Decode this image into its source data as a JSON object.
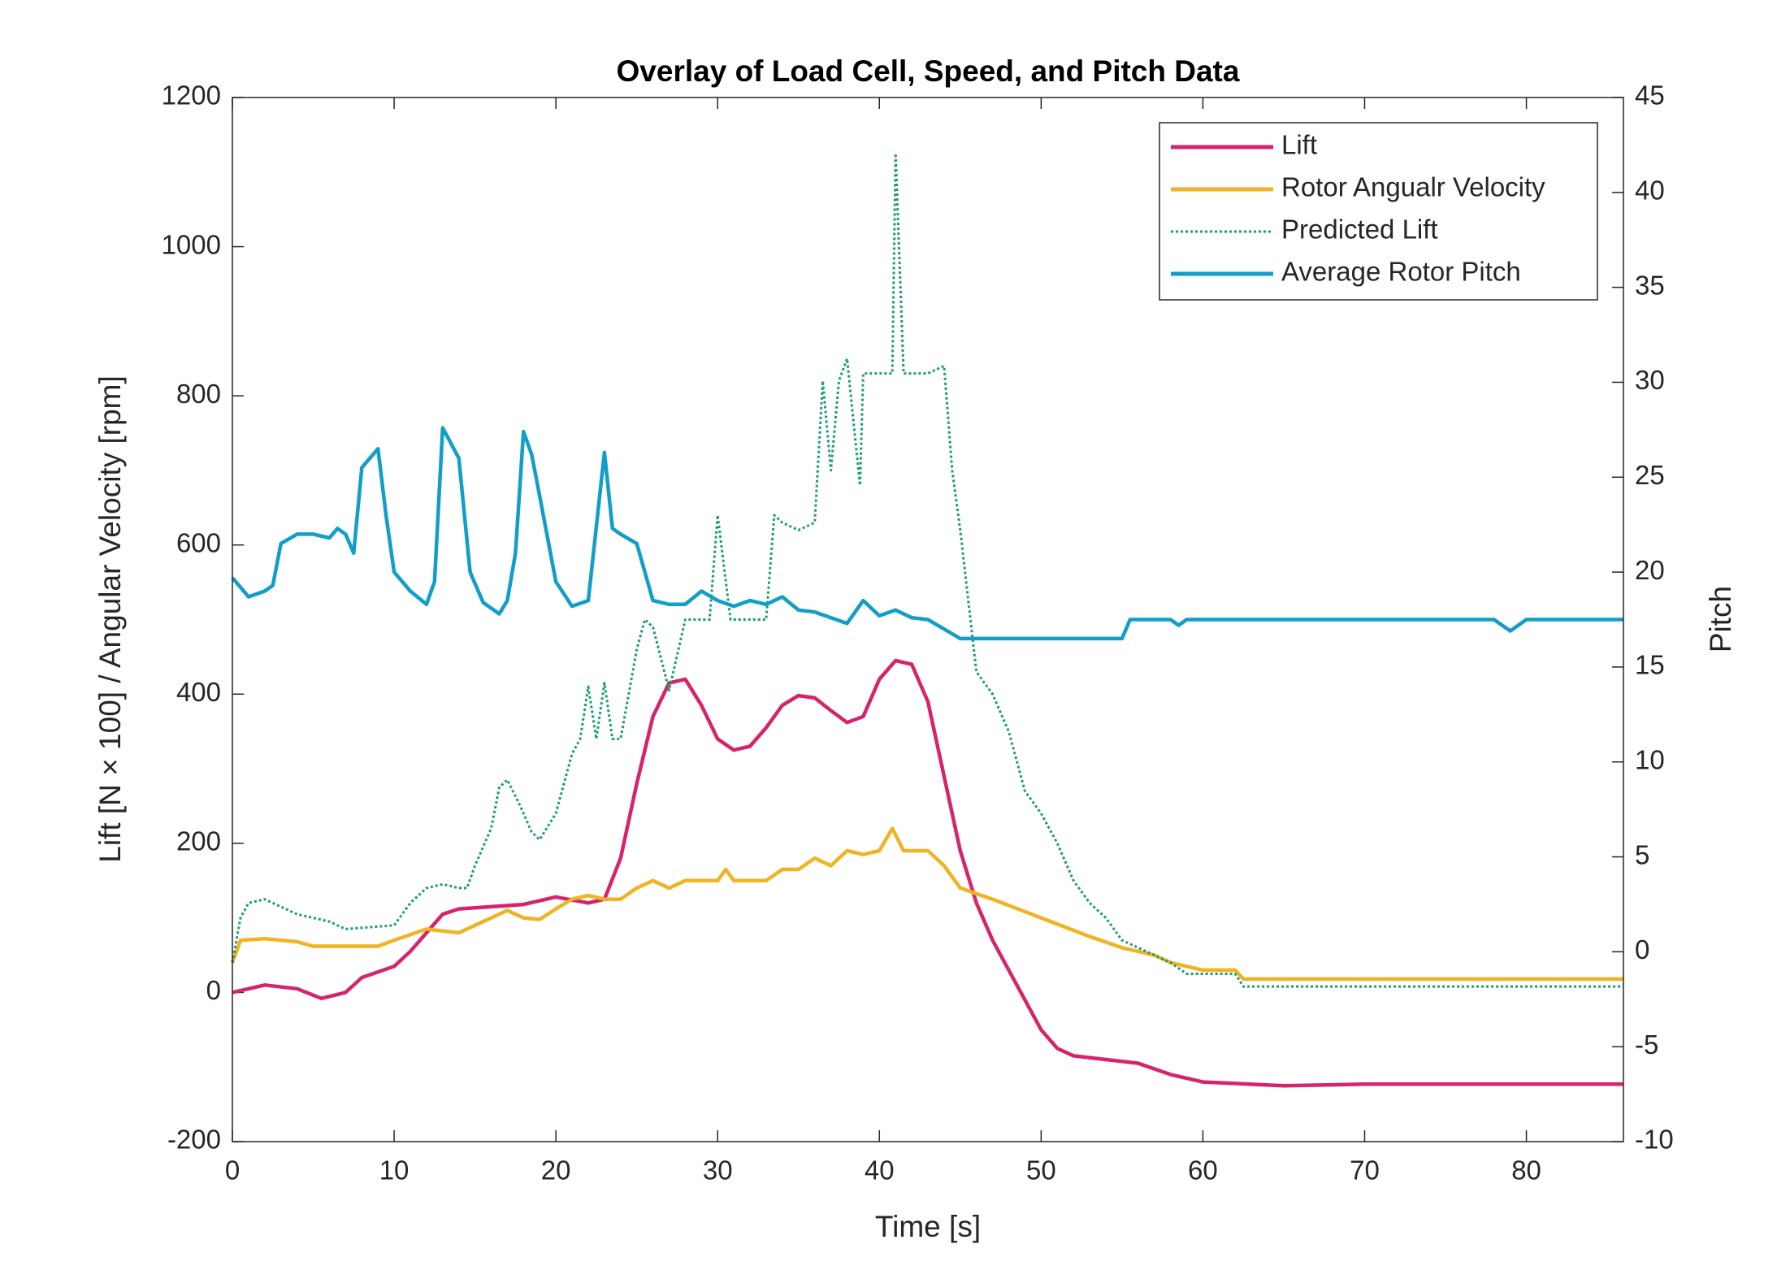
{
  "chart_data": {
    "type": "line",
    "title": "Overlay of Load Cell, Speed, and Pitch Data",
    "xlabel": "Time [s]",
    "ylabel": "Lift [N × 100] / Angular Velocity [rpm]",
    "y2label": "Pitch",
    "xlim": [
      0,
      86
    ],
    "xticks": [
      0,
      10,
      20,
      30,
      40,
      50,
      60,
      70,
      80
    ],
    "ylim": [
      -200,
      1200
    ],
    "yticks": [
      -200,
      0,
      200,
      400,
      600,
      800,
      1000,
      1200
    ],
    "y2lim": [
      -10,
      45
    ],
    "y2ticks": [
      -10,
      -5,
      0,
      5,
      10,
      15,
      20,
      25,
      30,
      35,
      40,
      45
    ],
    "grid": false,
    "legend": "upper right",
    "series": [
      {
        "name": "Lift",
        "color": "#d6246b",
        "line_style": "solid",
        "x": [
          0,
          2,
          4,
          5.5,
          7,
          8,
          10,
          11,
          12,
          13,
          14,
          16,
          18,
          20,
          22,
          23,
          24,
          25,
          26,
          27,
          28,
          29,
          30,
          31,
          32,
          33,
          34,
          35,
          36,
          37,
          38,
          39,
          40,
          41,
          42,
          43,
          44,
          45,
          46,
          47,
          48,
          49,
          50,
          51,
          52,
          54,
          56,
          58,
          60,
          65,
          70,
          80,
          86
        ],
        "values": [
          0,
          10,
          5,
          -8,
          0,
          20,
          35,
          55,
          80,
          105,
          112,
          115,
          118,
          128,
          120,
          125,
          180,
          280,
          370,
          415,
          420,
          385,
          340,
          325,
          330,
          355,
          385,
          398,
          395,
          378,
          362,
          370,
          420,
          445,
          440,
          390,
          290,
          190,
          120,
          70,
          30,
          -10,
          -50,
          -75,
          -85,
          -90,
          -95,
          -110,
          -120,
          -125,
          -123,
          -123,
          -123
        ]
      },
      {
        "name": "Rotor Angualr Velocity",
        "color": "#f0b323",
        "line_style": "solid",
        "x": [
          0,
          0.5,
          2,
          4,
          5,
          9,
          10,
          12,
          14,
          15,
          17,
          18,
          19,
          20,
          21,
          22,
          23,
          24,
          25,
          26,
          27,
          28,
          30,
          30.5,
          31,
          33,
          34,
          35,
          36,
          37,
          38,
          39,
          40,
          40.8,
          41.5,
          43,
          44,
          45,
          47,
          50,
          53,
          55,
          57,
          58,
          60,
          62,
          62.5,
          86
        ],
        "values": [
          40,
          70,
          72,
          68,
          62,
          62,
          70,
          85,
          80,
          90,
          110,
          100,
          98,
          112,
          125,
          130,
          125,
          125,
          140,
          150,
          140,
          150,
          150,
          165,
          150,
          150,
          165,
          165,
          180,
          170,
          190,
          185,
          190,
          220,
          190,
          190,
          170,
          140,
          125,
          100,
          75,
          60,
          50,
          40,
          30,
          30,
          18,
          18
        ]
      },
      {
        "name": "Predicted Lift",
        "color": "#1a9e6e",
        "line_style": "dotted",
        "x": [
          0,
          0.5,
          1,
          2,
          3,
          4,
          6,
          7,
          10,
          11,
          12,
          13,
          14,
          14.5,
          15,
          16,
          16.5,
          17,
          17.8,
          18.5,
          19,
          20,
          21,
          21.5,
          22,
          22.5,
          23,
          23.5,
          24,
          25,
          25.5,
          26,
          27,
          28,
          29,
          29.5,
          30,
          30.8,
          31,
          33,
          33.5,
          34,
          35,
          36,
          36.5,
          37,
          37.5,
          38,
          38.8,
          39,
          40,
          40.8,
          41,
          41.5,
          43,
          44,
          44.5,
          45,
          46,
          47,
          48,
          49,
          50,
          51,
          52,
          53,
          54,
          55,
          57,
          58,
          59,
          62,
          62.5,
          86
        ],
        "values": [
          40,
          100,
          120,
          125,
          115,
          105,
          95,
          85,
          90,
          120,
          140,
          145,
          140,
          140,
          170,
          220,
          275,
          285,
          250,
          215,
          205,
          240,
          320,
          340,
          410,
          340,
          415,
          340,
          340,
          460,
          500,
          490,
          405,
          500,
          500,
          500,
          640,
          500,
          500,
          500,
          640,
          630,
          620,
          630,
          820,
          700,
          820,
          850,
          680,
          830,
          830,
          830,
          1125,
          830,
          830,
          840,
          700,
          620,
          430,
          400,
          350,
          270,
          240,
          200,
          150,
          120,
          100,
          70,
          50,
          40,
          25,
          25,
          8,
          8
        ]
      },
      {
        "name": "Average Rotor Pitch",
        "color": "#119ec7",
        "line_style": "solid",
        "axis": "y2",
        "x": [
          0,
          1,
          2,
          2.5,
          3,
          4,
          5,
          6,
          6.5,
          7,
          7.5,
          8,
          9,
          9.5,
          10,
          11,
          12,
          12.5,
          13,
          14,
          14.7,
          15.5,
          16.5,
          17,
          17.5,
          18,
          18.5,
          19,
          20,
          21,
          22,
          23,
          23.5,
          24,
          25,
          26,
          27,
          28,
          29,
          30,
          31,
          32,
          33,
          34,
          35,
          36,
          37,
          38,
          39,
          40,
          41,
          42,
          43,
          44,
          45,
          55,
          55.5,
          58,
          58.5,
          59,
          78,
          79,
          80,
          86
        ],
        "values": [
          19.7,
          18.7,
          19.0,
          19.3,
          21.5,
          22.0,
          22.0,
          21.8,
          22.3,
          22.0,
          21.0,
          25.5,
          26.5,
          23.0,
          20.0,
          19.0,
          18.3,
          19.5,
          27.6,
          26.0,
          20.0,
          18.4,
          17.8,
          18.5,
          21.0,
          27.4,
          26.2,
          24.0,
          19.5,
          18.2,
          18.5,
          26.3,
          22.3,
          22.0,
          21.5,
          18.5,
          18.3,
          18.3,
          19.0,
          18.5,
          18.2,
          18.5,
          18.3,
          18.7,
          18.0,
          17.9,
          17.6,
          17.3,
          18.5,
          17.7,
          18.0,
          17.6,
          17.5,
          17.0,
          16.5,
          16.5,
          17.5,
          17.5,
          17.2,
          17.5,
          17.5,
          16.9,
          17.5,
          17.5
        ]
      }
    ]
  }
}
